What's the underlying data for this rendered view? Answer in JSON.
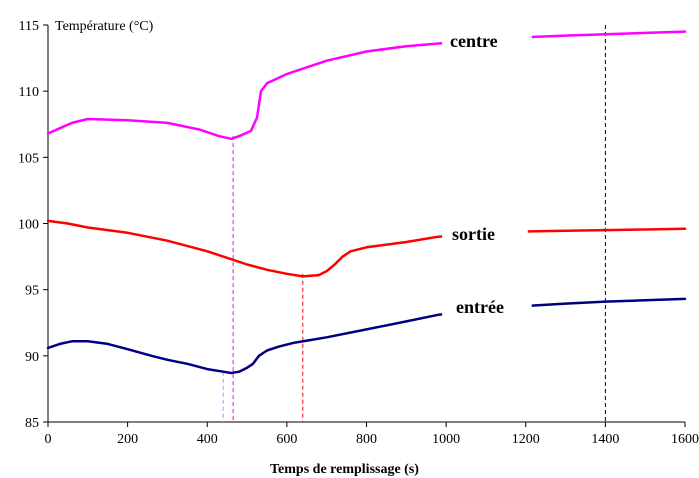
{
  "chart_data": {
    "type": "line",
    "ylabel": "Température (°C)",
    "xlabel": "Temps de remplissage (s)",
    "xlim": [
      0,
      1600
    ],
    "ylim": [
      85,
      115
    ],
    "xticks": [
      0,
      200,
      400,
      600,
      800,
      1000,
      1200,
      1400,
      1600
    ],
    "yticks": [
      85,
      90,
      95,
      100,
      105,
      110,
      115
    ],
    "grid": false,
    "series": [
      {
        "name": "centre",
        "color": "#ff00ff",
        "x": [
          0,
          30,
          60,
          100,
          200,
          300,
          380,
          430,
          460,
          480,
          510,
          525,
          535,
          550,
          600,
          650,
          700,
          800,
          900,
          980,
          1220,
          1300,
          1400,
          1500,
          1600
        ],
        "y": [
          106.8,
          107.2,
          107.6,
          107.9,
          107.8,
          107.6,
          107.1,
          106.6,
          106.4,
          106.6,
          107.0,
          108.0,
          110.0,
          110.6,
          111.3,
          111.8,
          112.3,
          113.0,
          113.4,
          113.6,
          114.1,
          114.2,
          114.3,
          114.4,
          114.5
        ]
      },
      {
        "name": "sortie",
        "color": "#ff0000",
        "x": [
          0,
          50,
          100,
          200,
          300,
          400,
          460,
          500,
          550,
          600,
          640,
          680,
          700,
          720,
          740,
          760,
          800,
          900,
          980,
          1210,
          1300,
          1400,
          1500,
          1600
        ],
        "y": [
          100.2,
          100.0,
          99.7,
          99.3,
          98.7,
          97.9,
          97.3,
          96.9,
          96.5,
          96.2,
          96.0,
          96.1,
          96.4,
          96.9,
          97.5,
          97.9,
          98.2,
          98.6,
          99.0,
          99.4,
          99.45,
          99.5,
          99.55,
          99.6
        ]
      },
      {
        "name": "entrée",
        "color": "#000080",
        "x": [
          0,
          30,
          60,
          100,
          150,
          200,
          260,
          300,
          350,
          400,
          440,
          460,
          480,
          500,
          515,
          530,
          550,
          580,
          620,
          660,
          700,
          800,
          900,
          980,
          1220,
          1300,
          1400,
          1500,
          1600
        ],
        "y": [
          90.6,
          90.9,
          91.1,
          91.1,
          90.9,
          90.5,
          90.0,
          89.7,
          89.4,
          89.0,
          88.8,
          88.7,
          88.8,
          89.1,
          89.4,
          90.0,
          90.4,
          90.7,
          91.0,
          91.2,
          91.4,
          92.0,
          92.6,
          93.1,
          93.8,
          93.95,
          94.1,
          94.2,
          94.3
        ]
      }
    ],
    "series_labels": {
      "centre": "centre",
      "sortie": "sortie",
      "entree": "entrée"
    },
    "vlines": [
      {
        "x": 440,
        "color": "#9999ff",
        "y_top": 88.8
      },
      {
        "x": 465,
        "color": "#ff00ff",
        "y_top": 106.6
      },
      {
        "x": 640,
        "color": "#ff0000",
        "y_top": 96.2
      },
      {
        "x": 1400,
        "color": "#000000",
        "y_top": 115
      }
    ]
  }
}
